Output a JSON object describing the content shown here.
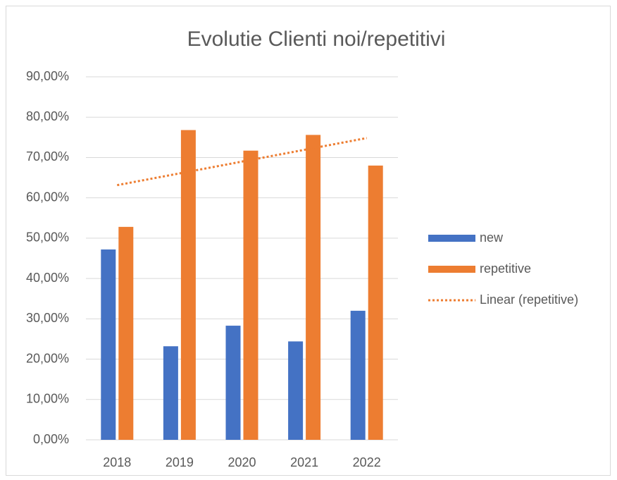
{
  "chart_data": {
    "type": "bar",
    "title": "Evolutie Clienti noi/repetitivi",
    "categories": [
      "2018",
      "2019",
      "2020",
      "2021",
      "2022"
    ],
    "series": [
      {
        "name": "new",
        "color": "#4472c4",
        "values": [
          47.2,
          23.2,
          28.3,
          24.4,
          32.0
        ]
      },
      {
        "name": "repetitive",
        "color": "#ed7d31",
        "values": [
          52.8,
          76.8,
          71.7,
          75.6,
          68.0
        ]
      },
      {
        "name": "Linear (repetitive)",
        "color": "#ed7d31",
        "type": "line",
        "dash": "dotted",
        "values": [
          63.14,
          66.06,
          68.98,
          71.9,
          74.82
        ]
      }
    ],
    "ylim": [
      0,
      90
    ],
    "yticks": [
      {
        "value": 0,
        "label": "0,00%"
      },
      {
        "value": 10,
        "label": "10,00%"
      },
      {
        "value": 20,
        "label": "20,00%"
      },
      {
        "value": 30,
        "label": "30,00%"
      },
      {
        "value": 40,
        "label": "40,00%"
      },
      {
        "value": 50,
        "label": "50,00%"
      },
      {
        "value": 60,
        "label": "60,00%"
      },
      {
        "value": 70,
        "label": "70,00%"
      },
      {
        "value": 80,
        "label": "80,00%"
      },
      {
        "value": 90,
        "label": "90,00%"
      }
    ],
    "grid": true,
    "legend": "right"
  }
}
